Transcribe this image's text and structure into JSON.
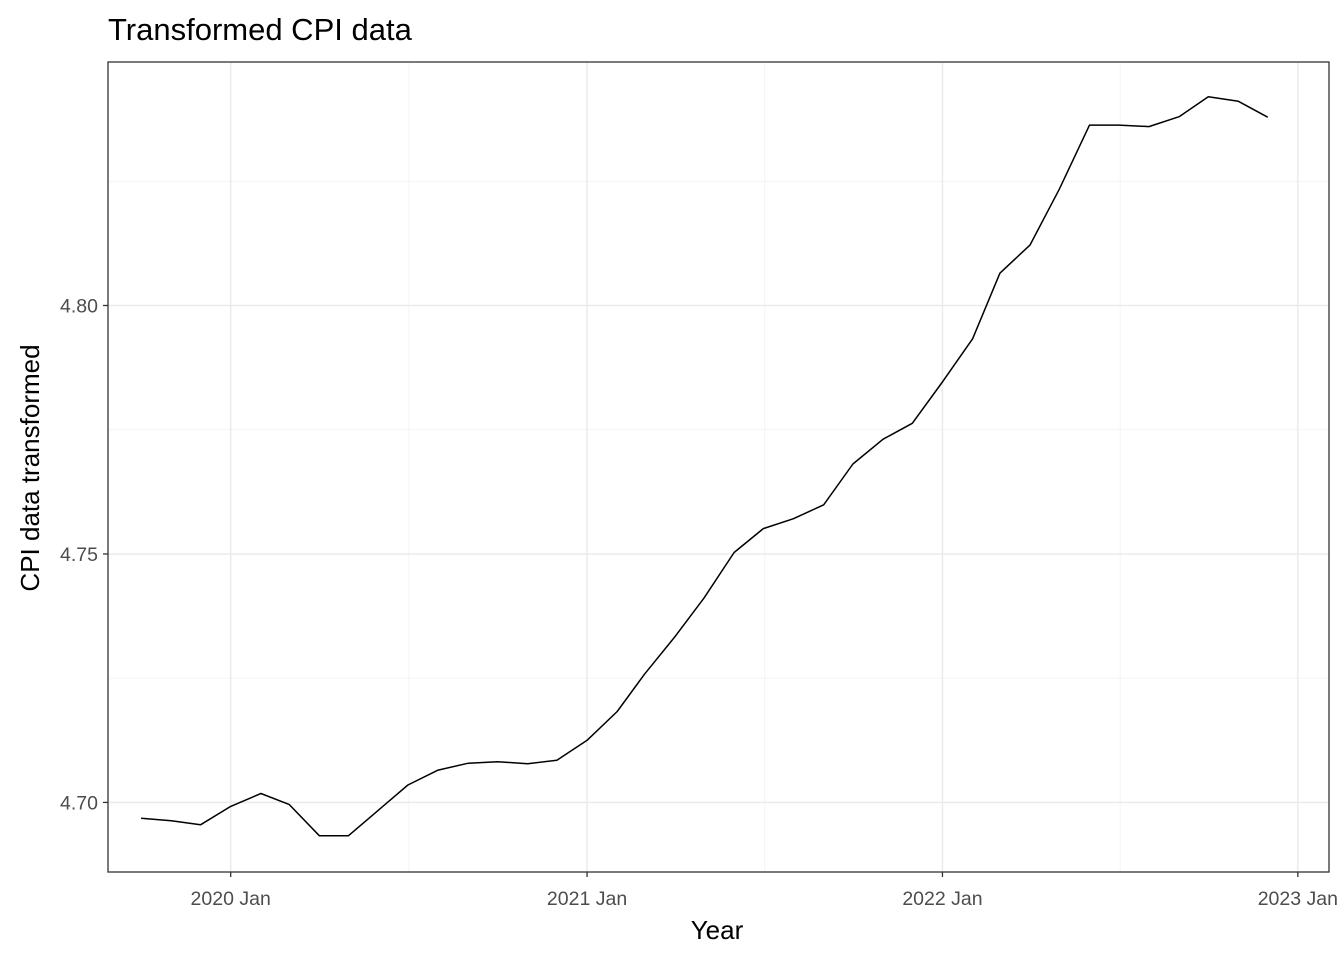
{
  "chart_data": {
    "type": "line",
    "title": "Transformed CPI data",
    "xlabel": "Year",
    "ylabel": "CPI data transformed",
    "x_tick_labels": [
      "2020 Jan",
      "2021 Jan",
      "2022 Jan",
      "2023 Jan"
    ],
    "y_tick_labels": [
      "4.70",
      "4.75",
      "4.80"
    ],
    "y_ticks": [
      4.7,
      4.75,
      4.8
    ],
    "ylim": [
      4.686,
      4.849
    ],
    "xlim": [
      "2019-08-28",
      "2023-02-02"
    ],
    "grid": true,
    "line_color": "#000000",
    "x": [
      "2019-10",
      "2019-11",
      "2019-12",
      "2020-01",
      "2020-02",
      "2020-03",
      "2020-04",
      "2020-05",
      "2020-06",
      "2020-07",
      "2020-08",
      "2020-09",
      "2020-10",
      "2020-11",
      "2020-12",
      "2021-01",
      "2021-02",
      "2021-03",
      "2021-04",
      "2021-05",
      "2021-06",
      "2021-07",
      "2021-08",
      "2021-09",
      "2021-10",
      "2021-11",
      "2021-12",
      "2022-01",
      "2022-02",
      "2022-03",
      "2022-04",
      "2022-05",
      "2022-06",
      "2022-07",
      "2022-08",
      "2022-09",
      "2022-10",
      "2022-11",
      "2022-12"
    ],
    "values": [
      4.6968,
      4.6963,
      4.6955,
      4.6992,
      4.7018,
      4.6996,
      4.6933,
      4.6933,
      4.6985,
      4.7035,
      4.7065,
      4.7079,
      4.7082,
      4.7078,
      4.7085,
      4.7125,
      4.7183,
      4.7258,
      4.7333,
      4.7411,
      4.7503,
      4.7551,
      4.7571,
      4.7599,
      4.7681,
      4.7731,
      4.7763,
      4.7846,
      4.7933,
      4.8065,
      4.8122,
      4.8234,
      4.8363,
      4.8363,
      4.836,
      4.838,
      4.842,
      4.8411,
      4.8379
    ]
  }
}
